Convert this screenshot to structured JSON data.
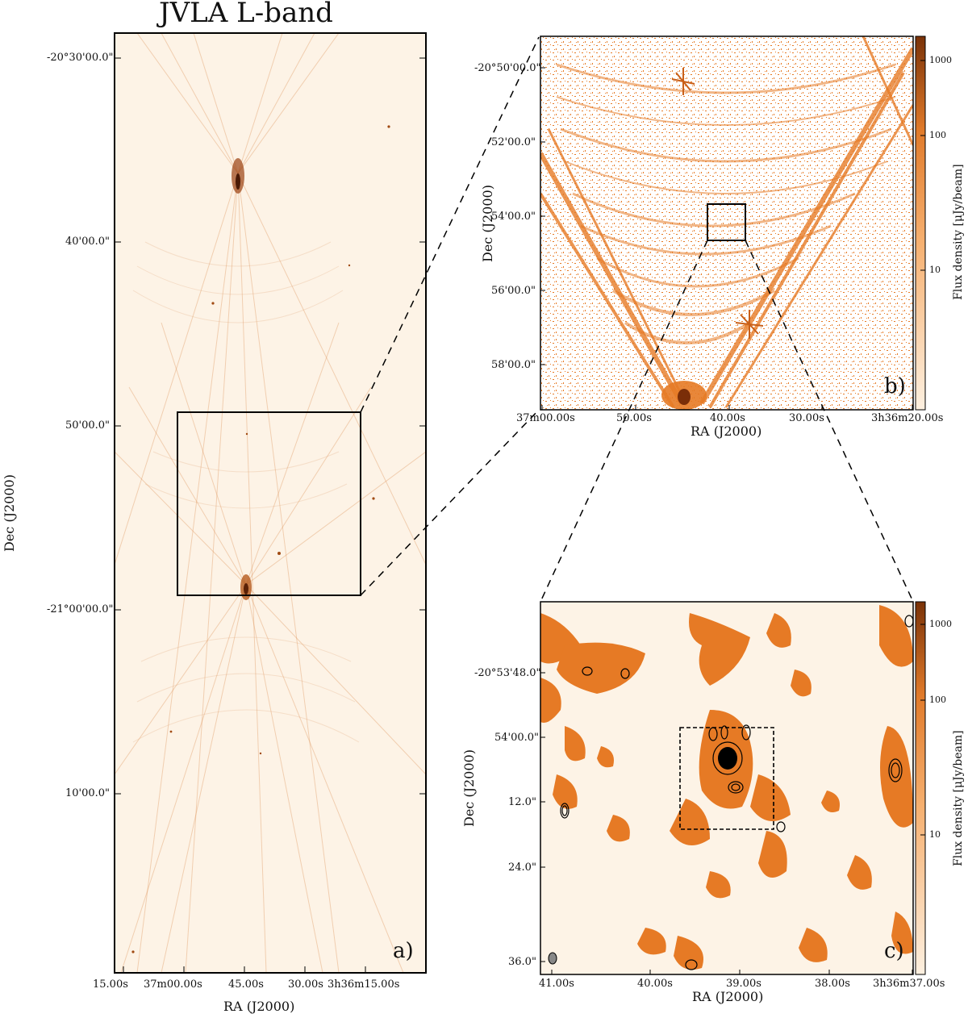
{
  "figure": {
    "title": "JVLA L-band",
    "panel_a": {
      "letter": "a)",
      "dec_ticks": [
        "-20°30'00.0\"",
        "40'00.0\"",
        "50'00.0\"",
        "-21°00'00.0\"",
        "10'00.0\""
      ],
      "ra_ticks": [
        "15.00s",
        "37m00.00s",
        "45.00s",
        "30.00s",
        "3h36m15.00s"
      ],
      "xlabel": "RA (J2000)",
      "ylabel": "Dec (J2000)"
    },
    "panel_b": {
      "letter": "b)",
      "dec_ticks": [
        "-20°50'00.0\"",
        "52'00.0\"",
        "54'00.0\"",
        "56'00.0\"",
        "58'00.0\""
      ],
      "ra_ticks": [
        "37m00.00s",
        "50.00s",
        "40.00s",
        "30.00s",
        "3h36m20.00s"
      ],
      "xlabel": "RA (J2000)",
      "ylabel": "Dec (J2000)",
      "colorbar_label": "Flux density [μJy/beam]",
      "colorbar_ticks": [
        "1000",
        "100",
        "10"
      ]
    },
    "panel_c": {
      "letter": "c)",
      "dec_ticks": [
        "-20°53'48.0\"",
        "54'00.0\"",
        "12.0\"",
        "24.0\"",
        "36.0\""
      ],
      "ra_ticks": [
        "41.00s",
        "40.00s",
        "39.00s",
        "38.00s",
        "3h36m37.00s"
      ],
      "xlabel": "RA (J2000)",
      "ylabel": "Dec (J2000)",
      "colorbar_label": "Flux density [μJy/beam]",
      "colorbar_ticks": [
        "1000",
        "100",
        "10"
      ]
    },
    "colors": {
      "map_background": "#fdf3e6",
      "emission": "#e67a25",
      "emission_dark": "#7a2e08",
      "contour": "#000000"
    }
  }
}
